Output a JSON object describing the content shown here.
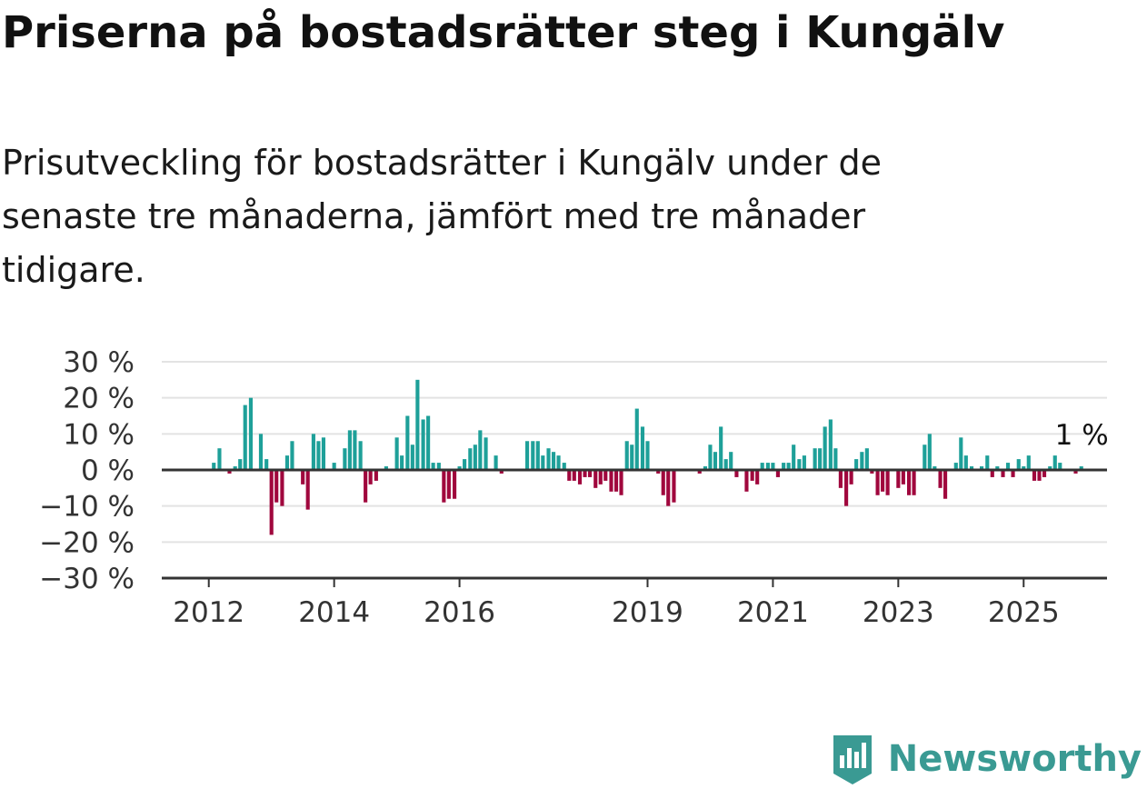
{
  "title": "Priserna på bostadsrätter steg i Kungälv",
  "subtitle": "Prisutveckling för bostadsrätter i Kungälv under de senaste tre månaderna, jämfört med tre månader tidigare.",
  "brand": {
    "name": "Newsworthy",
    "color": "#3a9a93"
  },
  "colors": {
    "positive": "#1ea099",
    "negative": "#a0073d",
    "grid": "#e3e3e3",
    "axis": "#333333"
  },
  "chart_data": {
    "type": "bar",
    "y_tick_labels": [
      "30 %",
      "20 %",
      "10 %",
      "0 %",
      "−10 %",
      "−20 %",
      "−30 %"
    ],
    "y_ticks": [
      30,
      20,
      10,
      0,
      -10,
      -20,
      -30
    ],
    "ylim": [
      -30,
      30
    ],
    "x_tick_labels": [
      "2012",
      "2014",
      "2016",
      "2019",
      "2021",
      "2023",
      "2025"
    ],
    "x_ticks": [
      2012,
      2014,
      2016,
      2019,
      2021,
      2023,
      2025
    ],
    "xlim": [
      2011.25,
      2026.33
    ],
    "annotation": "1 %",
    "grid": "horizontal",
    "series": [
      {
        "values": [
          [
            2012.08,
            2
          ],
          [
            2012.17,
            6
          ],
          [
            2012.25,
            0
          ],
          [
            2012.33,
            -1
          ],
          [
            2012.42,
            1
          ],
          [
            2012.5,
            3
          ],
          [
            2012.58,
            18
          ],
          [
            2012.67,
            20
          ],
          [
            2012.75,
            0
          ],
          [
            2012.83,
            10
          ],
          [
            2012.92,
            3
          ],
          [
            2013.0,
            -18
          ],
          [
            2013.08,
            -9
          ],
          [
            2013.17,
            -10
          ],
          [
            2013.25,
            4
          ],
          [
            2013.33,
            8
          ],
          [
            2013.42,
            0
          ],
          [
            2013.5,
            -4
          ],
          [
            2013.58,
            -11
          ],
          [
            2013.67,
            10
          ],
          [
            2013.75,
            8
          ],
          [
            2013.83,
            9
          ],
          [
            2013.92,
            0
          ],
          [
            2014.0,
            2
          ],
          [
            2014.08,
            0
          ],
          [
            2014.17,
            6
          ],
          [
            2014.25,
            11
          ],
          [
            2014.33,
            11
          ],
          [
            2014.42,
            8
          ],
          [
            2014.5,
            -9
          ],
          [
            2014.58,
            -4
          ],
          [
            2014.67,
            -3
          ],
          [
            2014.75,
            0
          ],
          [
            2014.83,
            1
          ],
          [
            2014.92,
            0
          ],
          [
            2015.0,
            9
          ],
          [
            2015.08,
            4
          ],
          [
            2015.17,
            15
          ],
          [
            2015.25,
            7
          ],
          [
            2015.33,
            25
          ],
          [
            2015.42,
            14
          ],
          [
            2015.5,
            15
          ],
          [
            2015.58,
            2
          ],
          [
            2015.67,
            2
          ],
          [
            2015.75,
            -9
          ],
          [
            2015.83,
            -8
          ],
          [
            2015.92,
            -8
          ],
          [
            2016.0,
            1
          ],
          [
            2016.08,
            3
          ],
          [
            2016.17,
            6
          ],
          [
            2016.25,
            7
          ],
          [
            2016.33,
            11
          ],
          [
            2016.42,
            9
          ],
          [
            2016.5,
            0
          ],
          [
            2016.58,
            4
          ],
          [
            2016.67,
            -1
          ],
          [
            2017.08,
            8
          ],
          [
            2017.17,
            8
          ],
          [
            2017.25,
            8
          ],
          [
            2017.33,
            4
          ],
          [
            2017.42,
            6
          ],
          [
            2017.5,
            5
          ],
          [
            2017.58,
            4
          ],
          [
            2017.67,
            2
          ],
          [
            2017.75,
            -3
          ],
          [
            2017.83,
            -3
          ],
          [
            2017.92,
            -4
          ],
          [
            2018.0,
            -2
          ],
          [
            2018.08,
            -2
          ],
          [
            2018.17,
            -5
          ],
          [
            2018.25,
            -4
          ],
          [
            2018.33,
            -3
          ],
          [
            2018.42,
            -6
          ],
          [
            2018.5,
            -6
          ],
          [
            2018.58,
            -7
          ],
          [
            2018.67,
            8
          ],
          [
            2018.75,
            7
          ],
          [
            2018.83,
            17
          ],
          [
            2018.92,
            12
          ],
          [
            2019.0,
            8
          ],
          [
            2019.08,
            0
          ],
          [
            2019.17,
            -1
          ],
          [
            2019.25,
            -7
          ],
          [
            2019.33,
            -10
          ],
          [
            2019.42,
            -9
          ],
          [
            2019.5,
            0
          ],
          [
            2019.58,
            0
          ],
          [
            2019.67,
            0
          ],
          [
            2019.75,
            0
          ],
          [
            2019.83,
            -1
          ],
          [
            2019.92,
            1
          ],
          [
            2020.0,
            7
          ],
          [
            2020.08,
            5
          ],
          [
            2020.17,
            12
          ],
          [
            2020.25,
            3
          ],
          [
            2020.33,
            5
          ],
          [
            2020.42,
            -2
          ],
          [
            2020.5,
            0
          ],
          [
            2020.58,
            -6
          ],
          [
            2020.67,
            -3
          ],
          [
            2020.75,
            -4
          ],
          [
            2020.83,
            2
          ],
          [
            2020.92,
            2
          ],
          [
            2021.0,
            2
          ],
          [
            2021.08,
            -2
          ],
          [
            2021.17,
            2
          ],
          [
            2021.25,
            2
          ],
          [
            2021.33,
            7
          ],
          [
            2021.42,
            3
          ],
          [
            2021.5,
            4
          ],
          [
            2021.58,
            0
          ],
          [
            2021.67,
            6
          ],
          [
            2021.75,
            6
          ],
          [
            2021.83,
            12
          ],
          [
            2021.92,
            14
          ],
          [
            2022.0,
            6
          ],
          [
            2022.08,
            -5
          ],
          [
            2022.17,
            -10
          ],
          [
            2022.25,
            -4
          ],
          [
            2022.33,
            3
          ],
          [
            2022.42,
            5
          ],
          [
            2022.5,
            6
          ],
          [
            2022.58,
            -1
          ],
          [
            2022.67,
            -7
          ],
          [
            2022.75,
            -6
          ],
          [
            2022.83,
            -7
          ],
          [
            2022.92,
            0
          ],
          [
            2023.0,
            -5
          ],
          [
            2023.08,
            -4
          ],
          [
            2023.17,
            -7
          ],
          [
            2023.25,
            -7
          ],
          [
            2023.33,
            0
          ],
          [
            2023.42,
            7
          ],
          [
            2023.5,
            10
          ],
          [
            2023.58,
            1
          ],
          [
            2023.67,
            -5
          ],
          [
            2023.75,
            -8
          ],
          [
            2023.83,
            0
          ],
          [
            2023.92,
            2
          ],
          [
            2024.0,
            9
          ],
          [
            2024.08,
            4
          ],
          [
            2024.17,
            1
          ],
          [
            2024.25,
            0
          ],
          [
            2024.33,
            1
          ],
          [
            2024.42,
            4
          ],
          [
            2024.5,
            -2
          ],
          [
            2024.58,
            1
          ],
          [
            2024.67,
            -2
          ],
          [
            2024.75,
            2
          ],
          [
            2024.83,
            -2
          ],
          [
            2024.92,
            3
          ],
          [
            2025.0,
            1
          ],
          [
            2025.08,
            4
          ],
          [
            2025.17,
            -3
          ],
          [
            2025.25,
            -3
          ],
          [
            2025.33,
            -2
          ],
          [
            2025.42,
            1
          ],
          [
            2025.5,
            4
          ],
          [
            2025.58,
            2
          ],
          [
            2025.67,
            0
          ],
          [
            2025.75,
            0
          ],
          [
            2025.83,
            -1
          ],
          [
            2025.92,
            1
          ]
        ]
      }
    ]
  }
}
